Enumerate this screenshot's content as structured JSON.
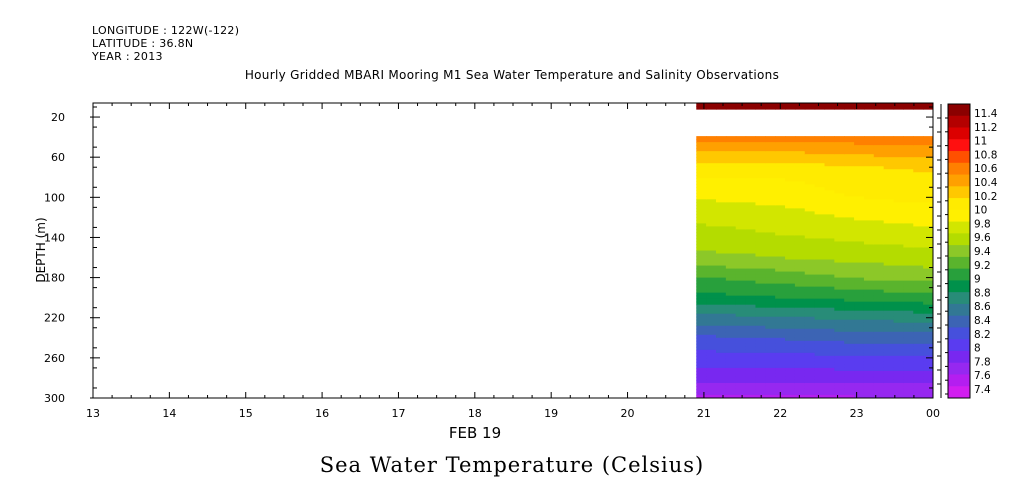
{
  "header": {
    "longitude": "LONGITUDE : 122W(-122)",
    "latitude": "LATITUDE : 36.8N",
    "year": "YEAR : 2013"
  },
  "plot_title": "Hourly Gridded MBARI Mooring M1 Sea Water Temperature and Salinity Observations",
  "bottom_title": "Sea Water Temperature (Celsius)",
  "chart_data": {
    "type": "heatmap",
    "title": "Hourly Gridded MBARI Mooring M1 Sea Water Temperature and Salinity Observations",
    "xlabel": "FEB 19",
    "ylabel": "DEPTH (m)",
    "x_ticks": [
      "13",
      "14",
      "15",
      "16",
      "17",
      "18",
      "19",
      "20",
      "21",
      "22",
      "23",
      "00"
    ],
    "y_ticks": [
      20,
      60,
      100,
      140,
      180,
      220,
      260,
      300
    ],
    "ylim": [
      300,
      6
    ],
    "y_inverted": true,
    "data_x_start_hour": 20.9,
    "data_x_end_hour": 24,
    "depths": [
      10,
      40,
      50,
      60,
      70,
      80,
      100,
      120,
      140,
      160,
      180,
      200,
      220,
      240,
      260,
      280,
      300
    ],
    "time_profiles": [
      {
        "hour": 21,
        "values": [
          11.4,
          10.5,
          10.3,
          10.15,
          10.0,
          9.9,
          9.75,
          9.6,
          9.5,
          9.35,
          9.05,
          8.85,
          8.5,
          8.2,
          8.0,
          7.8,
          7.5
        ]
      },
      {
        "hour": 22,
        "values": [
          11.4,
          10.5,
          10.3,
          10.15,
          10.0,
          9.9,
          9.8,
          9.65,
          9.55,
          9.4,
          9.15,
          8.9,
          8.55,
          8.25,
          8.0,
          7.8,
          7.5
        ]
      },
      {
        "hour": 23,
        "values": [
          11.4,
          10.5,
          10.35,
          10.2,
          10.05,
          10.0,
          9.9,
          9.75,
          9.6,
          9.45,
          9.25,
          8.95,
          8.6,
          8.3,
          8.05,
          7.8,
          7.55
        ]
      },
      {
        "hour": 24,
        "values": [
          11.4,
          10.5,
          10.35,
          10.25,
          10.1,
          10.05,
          9.95,
          9.8,
          9.65,
          9.5,
          9.3,
          9.0,
          8.65,
          8.3,
          8.05,
          7.8,
          7.55
        ]
      }
    ],
    "missing_depth_range": [
      12,
      38
    ],
    "colorbar": {
      "labels": [
        "11.4",
        "11.2",
        "11",
        "10.8",
        "10.6",
        "10.4",
        "10.2",
        "10",
        "9.8",
        "9.6",
        "9.4",
        "9.2",
        "9",
        "8.8",
        "8.6",
        "8.4",
        "8.2",
        "8",
        "7.8",
        "7.6",
        "7.4"
      ],
      "colors": [
        "#8b0000",
        "#b40000",
        "#dc0000",
        "#ff1010",
        "#ff5000",
        "#ff8000",
        "#ffa000",
        "#ffc800",
        "#ffeb00",
        "#fff000",
        "#d2e600",
        "#b4dc00",
        "#8cc828",
        "#5ab42d",
        "#28a03c",
        "#00914b",
        "#288c78",
        "#327894",
        "#3c64b4",
        "#4650dc",
        "#5a3cf0",
        "#7828f0",
        "#9628f0",
        "#b41ef0",
        "#d21ef0"
      ]
    }
  }
}
